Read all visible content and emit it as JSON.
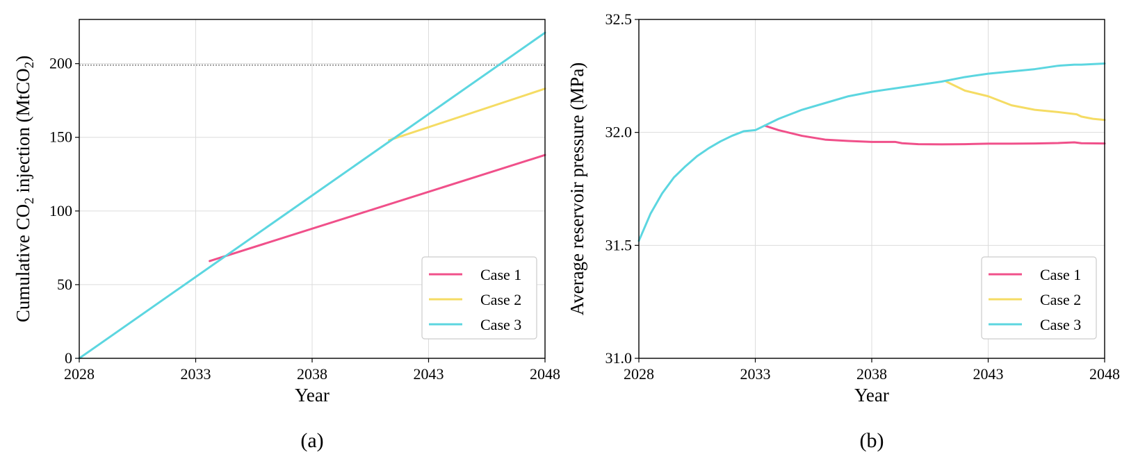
{
  "chart_data": [
    {
      "type": "line",
      "panel_label": "(a)",
      "title": "",
      "xlabel": "Year",
      "ylabel_parts": {
        "prefix": "Cumulative CO",
        "sub": "2",
        "mid": " injection (MtCO",
        "sub2": "2",
        "suffix": ")"
      },
      "xlim": [
        2028,
        2048
      ],
      "ylim": [
        0,
        230
      ],
      "xticks": [
        2028,
        2033,
        2038,
        2043,
        2048
      ],
      "yticks": [
        0,
        50,
        100,
        150,
        200
      ],
      "grid": true,
      "legend_position": "lower-right",
      "reference_line": {
        "y": 199,
        "style": "dotted"
      },
      "series": [
        {
          "name": "Case 1",
          "color": "#f0508a",
          "x": [
            2033.6,
            2048
          ],
          "y": [
            66,
            138
          ]
        },
        {
          "name": "Case 2",
          "color": "#f5dc64",
          "x": [
            2041.3,
            2048
          ],
          "y": [
            148,
            183
          ]
        },
        {
          "name": "Case 3",
          "color": "#5cd6e0",
          "x": [
            2028,
            2048
          ],
          "y": [
            0,
            221
          ]
        }
      ]
    },
    {
      "type": "line",
      "panel_label": "(b)",
      "title": "",
      "xlabel": "Year",
      "ylabel": "Average reservoir pressure (MPa)",
      "xlim": [
        2028,
        2048
      ],
      "ylim": [
        31.0,
        32.5
      ],
      "xticks": [
        2028,
        2033,
        2038,
        2043,
        2048
      ],
      "yticks": [
        31.0,
        31.5,
        32.0,
        32.5
      ],
      "ytick_format": 1,
      "grid": true,
      "legend_position": "lower-right",
      "series": [
        {
          "name": "Case 1",
          "color": "#f0508a",
          "x": [
            2033.4,
            2034,
            2035,
            2036,
            2037,
            2038,
            2039,
            2039.3,
            2040,
            2041,
            2042,
            2043,
            2044,
            2045,
            2046,
            2046.7,
            2047,
            2048
          ],
          "y": [
            32.03,
            32.01,
            31.985,
            31.968,
            31.962,
            31.958,
            31.958,
            31.952,
            31.948,
            31.947,
            31.948,
            31.95,
            31.95,
            31.951,
            31.953,
            31.956,
            31.952,
            31.951
          ]
        },
        {
          "name": "Case 2",
          "color": "#f5dc64",
          "x": [
            2041.2,
            2042,
            2043,
            2043.5,
            2044,
            2045,
            2046,
            2046.8,
            2047,
            2047.5,
            2048
          ],
          "y": [
            32.225,
            32.185,
            32.16,
            32.14,
            32.12,
            32.1,
            32.09,
            32.08,
            32.07,
            32.06,
            32.055
          ]
        },
        {
          "name": "Case 3",
          "color": "#5cd6e0",
          "x": [
            2028,
            2028.5,
            2029,
            2029.5,
            2030,
            2030.5,
            2031,
            2031.5,
            2032,
            2032.5,
            2033,
            2034,
            2035,
            2036,
            2037,
            2038,
            2039,
            2040,
            2041,
            2042,
            2043,
            2044,
            2045,
            2046,
            2046.7,
            2047,
            2048
          ],
          "y": [
            31.52,
            31.64,
            31.73,
            31.8,
            31.85,
            31.895,
            31.93,
            31.96,
            31.985,
            32.005,
            32.01,
            32.06,
            32.1,
            32.13,
            32.16,
            32.18,
            32.195,
            32.21,
            32.225,
            32.245,
            32.26,
            32.27,
            32.28,
            32.295,
            32.3,
            32.3,
            32.305
          ]
        }
      ]
    }
  ]
}
